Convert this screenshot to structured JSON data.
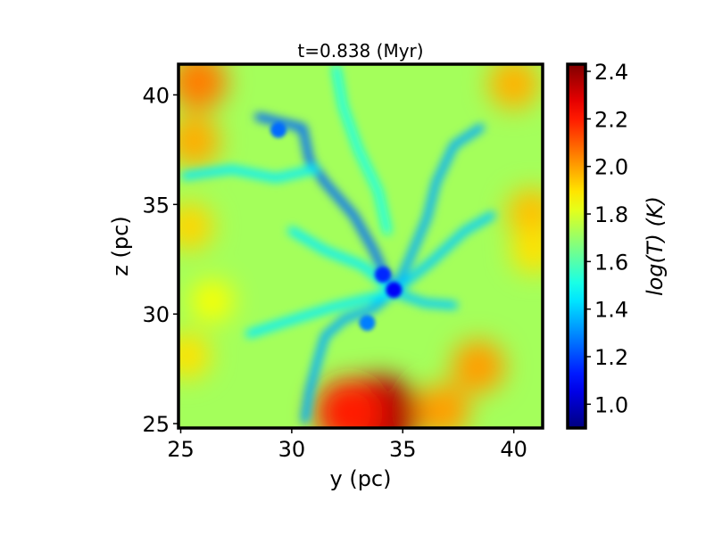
{
  "chart_data": {
    "type": "heatmap",
    "title": "t=0.838 (Myr)",
    "xlabel": "y (pc)",
    "ylabel": "z (pc)",
    "xlim": [
      24.9,
      41.3
    ],
    "ylim": [
      24.8,
      41.4
    ],
    "x_ticks": [
      25,
      30,
      35,
      40
    ],
    "y_ticks": [
      25,
      30,
      35,
      40
    ],
    "x_tick_labels": [
      "25",
      "30",
      "35",
      "40"
    ],
    "y_tick_labels": [
      "25",
      "30",
      "35",
      "40"
    ],
    "grid": false,
    "colormap": "jet",
    "colorbar": {
      "label": "log(T) (K)",
      "range": [
        0.9,
        2.43
      ],
      "ticks": [
        1.0,
        1.2,
        1.4,
        1.6,
        1.8,
        2.0,
        2.2,
        2.4
      ],
      "tick_labels": [
        "1.0",
        "1.2",
        "1.4",
        "1.6",
        "1.8",
        "2.0",
        "2.2",
        "2.4"
      ]
    },
    "background_level": 1.72,
    "hot_regions": [
      {
        "x": 25.8,
        "y": 40.6,
        "level": 2.05
      },
      {
        "x": 25.6,
        "y": 37.9,
        "level": 1.98
      },
      {
        "x": 40.0,
        "y": 40.5,
        "level": 1.97
      },
      {
        "x": 34.0,
        "y": 25.4,
        "level": 2.36
      },
      {
        "x": 32.6,
        "y": 25.5,
        "level": 2.2
      },
      {
        "x": 36.8,
        "y": 25.6,
        "level": 2.0
      },
      {
        "x": 38.4,
        "y": 27.6,
        "level": 2.0
      },
      {
        "x": 40.8,
        "y": 34.6,
        "level": 1.95
      },
      {
        "x": 40.9,
        "y": 32.9,
        "level": 1.9
      },
      {
        "x": 25.4,
        "y": 34.0,
        "level": 1.92
      },
      {
        "x": 25.3,
        "y": 28.1,
        "level": 1.9
      },
      {
        "x": 26.4,
        "y": 30.6,
        "level": 1.85
      }
    ],
    "cold_filaments": [
      {
        "points": [
          [
            28.5,
            39.0
          ],
          [
            30.5,
            38.5
          ],
          [
            30.8,
            37.0
          ],
          [
            31.5,
            36.0
          ],
          [
            32.8,
            34.5
          ],
          [
            33.7,
            32.9
          ],
          [
            34.1,
            32.0
          ],
          [
            34.6,
            31.1
          ]
        ],
        "level": 1.25
      },
      {
        "points": [
          [
            25.2,
            36.3
          ],
          [
            27.3,
            36.6
          ],
          [
            29.3,
            36.2
          ],
          [
            31.0,
            36.6
          ]
        ],
        "level": 1.45
      },
      {
        "points": [
          [
            34.6,
            31.0
          ],
          [
            35.3,
            32.5
          ],
          [
            36.1,
            34.4
          ],
          [
            36.5,
            36.0
          ],
          [
            37.3,
            37.7
          ],
          [
            38.5,
            38.5
          ]
        ],
        "level": 1.35
      },
      {
        "points": [
          [
            34.6,
            31.0
          ],
          [
            36.3,
            32.4
          ],
          [
            37.8,
            33.8
          ],
          [
            39.0,
            34.5
          ]
        ],
        "level": 1.4
      },
      {
        "points": [
          [
            34.6,
            31.0
          ],
          [
            33.6,
            30.2
          ],
          [
            32.4,
            29.8
          ],
          [
            31.5,
            29.0
          ],
          [
            31.2,
            28.0
          ],
          [
            30.8,
            26.5
          ],
          [
            30.6,
            25.2
          ]
        ],
        "level": 1.35
      },
      {
        "points": [
          [
            34.6,
            31.0
          ],
          [
            31.8,
            30.3
          ],
          [
            29.6,
            29.6
          ],
          [
            28.1,
            29.1
          ]
        ],
        "level": 1.45
      },
      {
        "points": [
          [
            34.6,
            31.0
          ],
          [
            36.0,
            30.5
          ],
          [
            37.3,
            30.4
          ]
        ],
        "level": 1.4
      },
      {
        "points": [
          [
            32.0,
            41.2
          ],
          [
            32.3,
            39.5
          ],
          [
            33.0,
            37.5
          ],
          [
            33.9,
            35.6
          ],
          [
            34.3,
            33.8
          ]
        ],
        "level": 1.5
      },
      {
        "points": [
          [
            30.0,
            33.8
          ],
          [
            31.5,
            32.9
          ],
          [
            33.2,
            32.2
          ],
          [
            34.6,
            31.0
          ]
        ],
        "level": 1.45
      }
    ],
    "cold_cores": [
      {
        "x": 34.6,
        "y": 31.1,
        "level": 1.08
      },
      {
        "x": 34.1,
        "y": 31.8,
        "level": 1.15
      },
      {
        "x": 33.4,
        "y": 29.6,
        "level": 1.28
      },
      {
        "x": 29.4,
        "y": 38.4,
        "level": 1.25
      }
    ]
  }
}
